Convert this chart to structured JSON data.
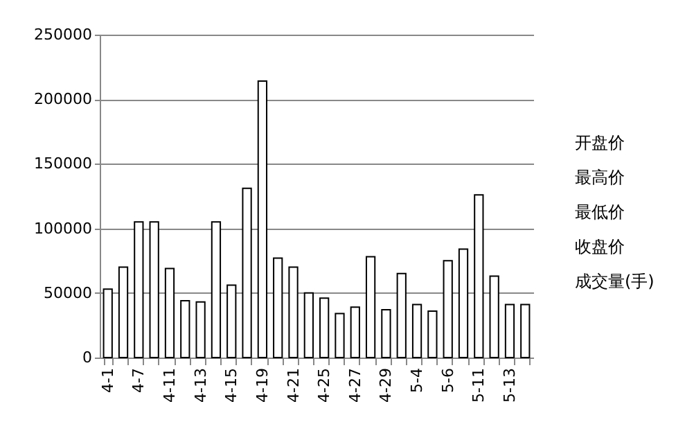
{
  "chart_data": {
    "type": "bar",
    "categories": [
      "4-1",
      null,
      "4-7",
      null,
      "4-11",
      null,
      "4-13",
      null,
      "4-15",
      null,
      "4-19",
      null,
      "4-21",
      null,
      "4-25",
      null,
      "4-27",
      null,
      "4-29",
      null,
      "5-4",
      null,
      "5-6",
      null,
      "5-11",
      null,
      "5-13",
      null
    ],
    "series": [
      {
        "color": "#ffffff",
        "values": [
          53000,
          70000,
          105000,
          105000,
          69000,
          44000,
          43000,
          105000,
          56000,
          131000,
          214000,
          77000,
          70000,
          50000,
          46000,
          34000,
          39000,
          78000,
          37000,
          65000,
          41000,
          36000,
          75000,
          84000,
          126000,
          63000,
          41000,
          41000
        ]
      }
    ],
    "annotations": [
      "开盘价",
      "最高价",
      "最低价",
      "收盘价",
      "成交量(手)"
    ],
    "ylim": [
      0,
      250000
    ],
    "yticks": [
      0,
      50000,
      100000,
      150000,
      200000,
      250000
    ],
    "grid": "y"
  }
}
